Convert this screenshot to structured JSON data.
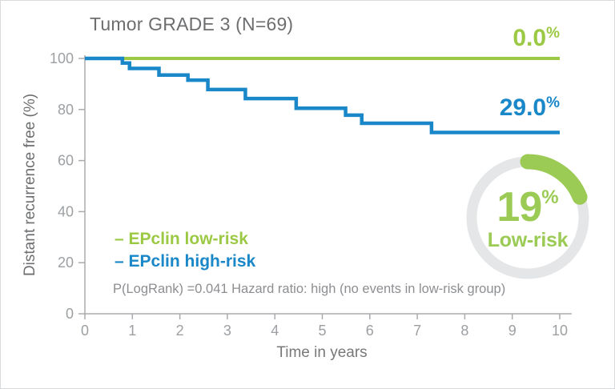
{
  "header": {
    "title": "Tumor GRADE 3 (N=69)"
  },
  "end_labels": {
    "low": {
      "value": "0.0",
      "unit": "%"
    },
    "high": {
      "value": "29.0",
      "unit": "%"
    }
  },
  "legend": {
    "low_label": "– EPclin low-risk",
    "high_label": "– EPclin high-risk"
  },
  "stats_line": "P(LogRank) =0.041 Hazard ratio: high (no events in low-risk group)",
  "gauge": {
    "value": 19,
    "value_text": "19",
    "unit": "%",
    "label": "Low-risk",
    "color": "#9bcb55",
    "track_color": "#e5e6e7"
  },
  "chart_data": {
    "type": "line",
    "subtype": "kaplan-meier-step",
    "title": "Tumor GRADE 3 (N=69)",
    "xlabel": "Time in years",
    "ylabel": "Distant recurrence free (%)",
    "xlim": [
      0,
      10
    ],
    "ylim": [
      0,
      100
    ],
    "xticks": [
      0,
      1,
      2,
      3,
      4,
      5,
      6,
      7,
      8,
      9,
      10
    ],
    "yticks": [
      0,
      20,
      40,
      60,
      80,
      100
    ],
    "grid": false,
    "legend_position": "lower-left-inside",
    "axis_color": "#a9abae",
    "tick_label_color": "#9da0a3",
    "series": [
      {
        "name": "EPclin low-risk",
        "color": "#9cc944",
        "end_value_pct": 0.0,
        "points": [
          [
            0,
            100
          ],
          [
            10,
            100
          ]
        ]
      },
      {
        "name": "EPclin high-risk",
        "color": "#1987c8",
        "end_value_pct": 29.0,
        "points": [
          [
            0,
            100
          ],
          [
            0.79,
            98.2
          ],
          [
            0.94,
            96.1
          ],
          [
            1.56,
            93.5
          ],
          [
            2.17,
            91.5
          ],
          [
            2.59,
            87.8
          ],
          [
            3.38,
            84.3
          ],
          [
            4.45,
            80.5
          ],
          [
            5.49,
            77.8
          ],
          [
            5.83,
            74.6
          ],
          [
            7.3,
            71.0
          ],
          [
            10,
            71.0
          ]
        ]
      }
    ],
    "annotation": "P(LogRank) =0.041 Hazard ratio: high (no events in low-risk group)",
    "gauge_annotation": {
      "value": 19,
      "label": "Low-risk"
    }
  }
}
